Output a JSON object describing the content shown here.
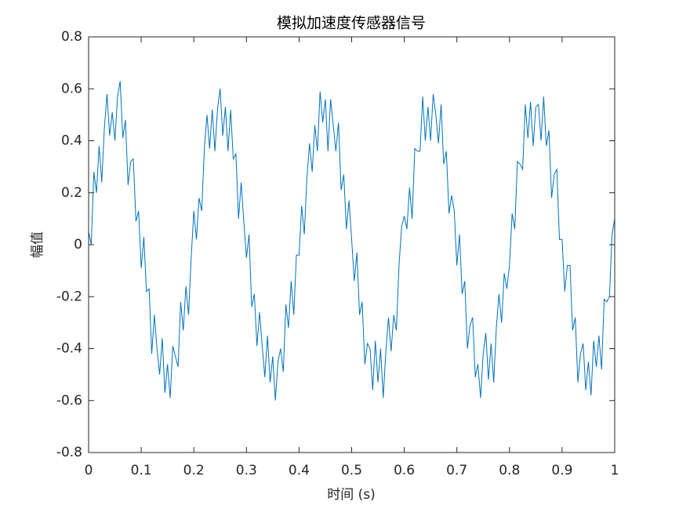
{
  "chart_data": {
    "type": "line",
    "title": "模拟加速度传感器信号",
    "x_label": "时间 (s)",
    "y_label": "幅值",
    "color": "#0072bd",
    "x": [
      0,
      0.005,
      0.01,
      0.015,
      0.02,
      0.025,
      0.03,
      0.035,
      0.04,
      0.045,
      0.05,
      0.055,
      0.06,
      0.065,
      0.07,
      0.075,
      0.08,
      0.085,
      0.09,
      0.095,
      0.1,
      0.105,
      0.11,
      0.115,
      0.12,
      0.125,
      0.13,
      0.135,
      0.14,
      0.145,
      0.15,
      0.155,
      0.16,
      0.165,
      0.17,
      0.175,
      0.18,
      0.185,
      0.19,
      0.195,
      0.2,
      0.205,
      0.21,
      0.215,
      0.22,
      0.225,
      0.23,
      0.235,
      0.24,
      0.245,
      0.25,
      0.255,
      0.26,
      0.265,
      0.27,
      0.275,
      0.28,
      0.285,
      0.29,
      0.295,
      0.3,
      0.305,
      0.31,
      0.315,
      0.32,
      0.325,
      0.33,
      0.335,
      0.34,
      0.345,
      0.35,
      0.355,
      0.36,
      0.365,
      0.37,
      0.375,
      0.38,
      0.385,
      0.39,
      0.395,
      0.4,
      0.405,
      0.41,
      0.415,
      0.42,
      0.425,
      0.43,
      0.435,
      0.44,
      0.445,
      0.45,
      0.455,
      0.46,
      0.465,
      0.47,
      0.475,
      0.48,
      0.485,
      0.49,
      0.495,
      0.5,
      0.505,
      0.51,
      0.515,
      0.52,
      0.525,
      0.53,
      0.535,
      0.54,
      0.545,
      0.55,
      0.555,
      0.56,
      0.565,
      0.57,
      0.575,
      0.58,
      0.585,
      0.59,
      0.595,
      0.6,
      0.605,
      0.61,
      0.615,
      0.62,
      0.625,
      0.63,
      0.635,
      0.64,
      0.645,
      0.65,
      0.655,
      0.66,
      0.665,
      0.67,
      0.675,
      0.68,
      0.685,
      0.69,
      0.695,
      0.7,
      0.705,
      0.71,
      0.715,
      0.72,
      0.725,
      0.73,
      0.735,
      0.74,
      0.745,
      0.75,
      0.755,
      0.76,
      0.765,
      0.77,
      0.775,
      0.78,
      0.785,
      0.79,
      0.795,
      0.8,
      0.805,
      0.81,
      0.815,
      0.82,
      0.825,
      0.83,
      0.835,
      0.84,
      0.845,
      0.85,
      0.855,
      0.86,
      0.865,
      0.87,
      0.875,
      0.88,
      0.885,
      0.89,
      0.895,
      0.9,
      0.905,
      0.91,
      0.915,
      0.92,
      0.925,
      0.93,
      0.935,
      0.94,
      0.945,
      0.95,
      0.955,
      0.96,
      0.965,
      0.97,
      0.975,
      0.98,
      0.985,
      0.99,
      0.995,
      1
    ],
    "values": [
      0.05,
      0,
      0.28,
      0.2,
      0.38,
      0.24,
      0.45,
      0.58,
      0.42,
      0.51,
      0.4,
      0.57,
      0.63,
      0.41,
      0.48,
      0.23,
      0.32,
      0.33,
      0.09,
      0.13,
      -0.09,
      0.03,
      -0.18,
      -0.17,
      -0.42,
      -0.27,
      -0.4,
      -0.5,
      -0.36,
      -0.57,
      -0.46,
      -0.59,
      -0.39,
      -0.43,
      -0.47,
      -0.22,
      -0.33,
      -0.16,
      -0.27,
      -0.05,
      0.13,
      0.02,
      0.18,
      0.13,
      0.37,
      0.5,
      0.37,
      0.52,
      0.36,
      0.52,
      0.6,
      0.42,
      0.53,
      0.36,
      0.52,
      0.33,
      0.35,
      0.1,
      0.24,
      0.09,
      -0.05,
      0.04,
      -0.24,
      -0.19,
      -0.39,
      -0.26,
      -0.39,
      -0.51,
      -0.35,
      -0.53,
      -0.43,
      -0.6,
      -0.45,
      -0.4,
      -0.49,
      -0.23,
      -0.32,
      -0.14,
      -0.27,
      -0.04,
      -0.04,
      0.15,
      0.04,
      0.26,
      0.39,
      0.28,
      0.46,
      0.36,
      0.59,
      0.47,
      0.56,
      0.36,
      0.56,
      0.46,
      0.36,
      0.47,
      0.21,
      0.27,
      0.06,
      0.17,
      0.02,
      -0.14,
      -0.03,
      -0.27,
      -0.22,
      -0.46,
      -0.38,
      -0.4,
      -0.56,
      -0.37,
      -0.53,
      -0.4,
      -0.59,
      -0.41,
      -0.28,
      -0.41,
      -0.27,
      -0.33,
      -0.08,
      0.07,
      0.11,
      0.06,
      0.22,
      0.1,
      0.37,
      0.36,
      0.36,
      0.57,
      0.4,
      0.53,
      0.4,
      0.58,
      0.5,
      0.39,
      0.54,
      0.31,
      0.36,
      0.12,
      0.19,
      0.13,
      -0.08,
      0.04,
      -0.19,
      -0.14,
      -0.4,
      -0.31,
      -0.28,
      -0.51,
      -0.46,
      -0.59,
      -0.42,
      -0.34,
      -0.52,
      -0.38,
      -0.53,
      -0.32,
      -0.19,
      -0.3,
      -0.11,
      -0.17,
      -0.08,
      0.12,
      0.06,
      0.32,
      0.31,
      0.29,
      0.54,
      0.41,
      0.55,
      0.38,
      0.53,
      0.54,
      0.4,
      0.57,
      0.38,
      0.44,
      0.18,
      0.27,
      0.29,
      0.02,
      0.02,
      -0.18,
      -0.08,
      -0.08,
      -0.33,
      -0.28,
      -0.53,
      -0.42,
      -0.38,
      -0.56,
      -0.45,
      -0.58,
      -0.37,
      -0.47,
      -0.35,
      -0.48,
      -0.21,
      -0.22,
      -0.2,
      0.04,
      0.1
    ],
    "xlim": [
      0,
      1
    ],
    "xticks": [
      0,
      0.1,
      0.2,
      0.3,
      0.4,
      0.5,
      0.6,
      0.7,
      0.8,
      0.9,
      1
    ],
    "ylim": [
      -0.8,
      0.8
    ],
    "yticks": [
      -0.8,
      -0.6,
      -0.4,
      -0.2,
      0,
      0.2,
      0.4,
      0.6,
      0.8
    ],
    "grid": false
  }
}
